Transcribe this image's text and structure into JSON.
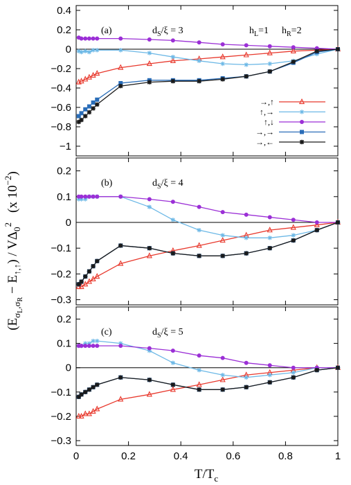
{
  "figure": {
    "ylabel_main": "(E",
    "ylabel_sub1": "σ",
    "ylabel_subsub1": "L",
    "ylabel_comma": ",σ",
    "ylabel_subsub2": "R",
    "ylabel_mid": " − E",
    "ylabel_sub2": "↑,↑",
    "ylabel_tail": ") / VΔ",
    "ylabel_sub0": "0",
    "ylabel_sup": "2",
    "ylabel_scale": "(x 10",
    "ylabel_scale_exp": "−2",
    "ylabel_scale_close": ")",
    "xlabel_main": "T/T",
    "xlabel_sub": "c",
    "x_ticks": [
      "0",
      "0.2",
      "0.4",
      "0.6",
      "0.8",
      "1"
    ]
  },
  "legend": {
    "entries": [
      {
        "label": "→,↑",
        "color": "#e8382c",
        "marker": "triangle"
      },
      {
        "label": "↑,→",
        "color": "#6cb8e6",
        "marker": "star"
      },
      {
        "label": "↑,↓",
        "color": "#9b2fd6",
        "marker": "circle"
      },
      {
        "label": "→,→",
        "color": "#2a6db8",
        "marker": "square"
      },
      {
        "label": "→,←",
        "color": "#1a1a1a",
        "marker": "asterisk"
      }
    ]
  },
  "chart_data": [
    {
      "type": "line",
      "panel_label": "(a)",
      "annotation_main": "d",
      "annotation_sub": "S",
      "annotation_tail": "/ξ = 3",
      "extra_annotations": [
        {
          "main": "h",
          "sub": "L",
          "tail": "=1"
        },
        {
          "main": "h",
          "sub": "R",
          "tail": "=2"
        }
      ],
      "xlim": [
        0,
        1
      ],
      "ylim": [
        -1.1,
        0.45
      ],
      "yticks": [
        0.4,
        0.2,
        0,
        -0.2,
        -0.4,
        -0.6,
        -0.8,
        -1
      ],
      "ytick_labels": [
        "0.4",
        "0.2",
        "0",
        "−0.2",
        "−0.4",
        "−0.6",
        "−0.8",
        "−1"
      ],
      "series": [
        {
          "key": "s1",
          "x": [
            0.01,
            0.02,
            0.035,
            0.05,
            0.065,
            0.08,
            0.17,
            0.28,
            0.37,
            0.47,
            0.56,
            0.65,
            0.74,
            0.83,
            0.92,
            1.0
          ],
          "y": [
            -0.34,
            -0.33,
            -0.31,
            -0.29,
            -0.27,
            -0.25,
            -0.19,
            -0.15,
            -0.12,
            -0.1,
            -0.08,
            -0.06,
            -0.04,
            -0.02,
            -0.01,
            0.0
          ]
        },
        {
          "key": "s2",
          "x": [
            0.01,
            0.02,
            0.035,
            0.05,
            0.065,
            0.08,
            0.17,
            0.28,
            0.37,
            0.47,
            0.56,
            0.65,
            0.74,
            0.83,
            0.92,
            1.0
          ],
          "y": [
            -0.02,
            -0.03,
            -0.02,
            -0.03,
            -0.01,
            -0.01,
            -0.01,
            -0.04,
            -0.08,
            -0.12,
            -0.15,
            -0.16,
            -0.15,
            -0.12,
            -0.05,
            0.0
          ]
        },
        {
          "key": "s3",
          "x": [
            0.01,
            0.02,
            0.035,
            0.05,
            0.065,
            0.08,
            0.17,
            0.28,
            0.37,
            0.47,
            0.56,
            0.65,
            0.74,
            0.83,
            0.92,
            1.0
          ],
          "y": [
            0.12,
            0.11,
            0.11,
            0.11,
            0.11,
            0.11,
            0.11,
            0.1,
            0.09,
            0.07,
            0.05,
            0.04,
            0.03,
            0.02,
            0.01,
            0.0
          ]
        },
        {
          "key": "s4",
          "x": [
            0.01,
            0.02,
            0.035,
            0.05,
            0.065,
            0.08,
            0.17,
            0.28,
            0.37,
            0.47,
            0.56,
            0.65,
            0.74,
            0.83,
            0.92,
            1.0
          ],
          "y": [
            -0.69,
            -0.66,
            -0.62,
            -0.59,
            -0.55,
            -0.52,
            -0.35,
            -0.32,
            -0.32,
            -0.32,
            -0.3,
            -0.28,
            -0.23,
            -0.14,
            -0.03,
            0.0
          ]
        },
        {
          "key": "s5",
          "x": [
            0.01,
            0.02,
            0.035,
            0.05,
            0.065,
            0.08,
            0.17,
            0.28,
            0.37,
            0.47,
            0.56,
            0.65,
            0.74,
            0.83,
            0.92,
            1.0
          ],
          "y": [
            -0.75,
            -0.73,
            -0.69,
            -0.65,
            -0.61,
            -0.57,
            -0.38,
            -0.34,
            -0.33,
            -0.33,
            -0.31,
            -0.28,
            -0.23,
            -0.13,
            -0.02,
            0.0
          ]
        }
      ]
    },
    {
      "type": "line",
      "panel_label": "(b)",
      "annotation_main": "d",
      "annotation_sub": "S",
      "annotation_tail": "/ξ = 4",
      "extra_annotations": [],
      "xlim": [
        0,
        1
      ],
      "ylim": [
        -0.32,
        0.25
      ],
      "yticks": [
        0.2,
        0.1,
        0,
        -0.1,
        -0.2,
        -0.3
      ],
      "ytick_labels": [
        "0.2",
        "0.1",
        "0",
        "−0.1",
        "−0.2",
        "−0.3"
      ],
      "series": [
        {
          "key": "s1",
          "x": [
            0.01,
            0.02,
            0.035,
            0.05,
            0.065,
            0.08,
            0.17,
            0.28,
            0.37,
            0.47,
            0.56,
            0.65,
            0.74,
            0.83,
            0.92,
            1.0
          ],
          "y": [
            -0.25,
            -0.25,
            -0.24,
            -0.23,
            -0.22,
            -0.21,
            -0.16,
            -0.13,
            -0.11,
            -0.09,
            -0.07,
            -0.05,
            -0.03,
            -0.02,
            -0.01,
            0.0
          ]
        },
        {
          "key": "s2",
          "x": [
            0.01,
            0.02,
            0.035,
            0.05,
            0.065,
            0.08,
            0.17,
            0.28,
            0.37,
            0.47,
            0.56,
            0.65,
            0.74,
            0.83,
            0.92,
            1.0
          ],
          "y": [
            0.09,
            0.09,
            0.09,
            0.1,
            0.1,
            0.1,
            0.1,
            0.06,
            0.01,
            -0.03,
            -0.05,
            -0.06,
            -0.06,
            -0.05,
            -0.03,
            0.0
          ]
        },
        {
          "key": "s3",
          "x": [
            0.01,
            0.02,
            0.035,
            0.05,
            0.065,
            0.08,
            0.17,
            0.28,
            0.37,
            0.47,
            0.56,
            0.65,
            0.74,
            0.83,
            0.92,
            1.0
          ],
          "y": [
            0.1,
            0.1,
            0.1,
            0.1,
            0.1,
            0.1,
            0.1,
            0.09,
            0.08,
            0.06,
            0.04,
            0.03,
            0.02,
            0.01,
            0.0,
            0.0
          ]
        },
        {
          "key": "s4",
          "x": [
            0.01,
            0.02,
            0.035,
            0.05,
            0.065,
            0.08,
            0.17,
            0.28,
            0.37,
            0.47,
            0.56,
            0.65,
            0.74,
            0.83,
            0.92,
            1.0
          ],
          "y": [
            -0.24,
            -0.23,
            -0.21,
            -0.19,
            -0.17,
            -0.15,
            -0.09,
            -0.1,
            -0.12,
            -0.13,
            -0.13,
            -0.12,
            -0.1,
            -0.07,
            -0.03,
            0.0
          ]
        },
        {
          "key": "s5",
          "x": [
            0.01,
            0.02,
            0.035,
            0.05,
            0.065,
            0.08,
            0.17,
            0.28,
            0.37,
            0.47,
            0.56,
            0.65,
            0.74,
            0.83,
            0.92,
            1.0
          ],
          "y": [
            -0.24,
            -0.23,
            -0.21,
            -0.19,
            -0.17,
            -0.15,
            -0.09,
            -0.1,
            -0.12,
            -0.13,
            -0.13,
            -0.12,
            -0.1,
            -0.07,
            -0.03,
            0.0
          ]
        }
      ]
    },
    {
      "type": "line",
      "panel_label": "(c)",
      "annotation_main": "d",
      "annotation_sub": "S",
      "annotation_tail": "/ξ = 5",
      "extra_annotations": [],
      "xlim": [
        0,
        1
      ],
      "ylim": [
        -0.32,
        0.25
      ],
      "yticks": [
        0.2,
        0.1,
        0,
        -0.1,
        -0.2,
        -0.3
      ],
      "ytick_labels": [
        "0.2",
        "0.1",
        "0",
        "−0.1",
        "−0.2",
        "−0.3"
      ],
      "series": [
        {
          "key": "s1",
          "x": [
            0.01,
            0.02,
            0.035,
            0.05,
            0.065,
            0.08,
            0.17,
            0.28,
            0.37,
            0.47,
            0.56,
            0.65,
            0.74,
            0.83,
            0.92,
            1.0
          ],
          "y": [
            -0.2,
            -0.2,
            -0.19,
            -0.19,
            -0.18,
            -0.17,
            -0.13,
            -0.11,
            -0.09,
            -0.07,
            -0.05,
            -0.03,
            -0.02,
            -0.01,
            0.0,
            0.0
          ]
        },
        {
          "key": "s2",
          "x": [
            0.01,
            0.02,
            0.035,
            0.05,
            0.065,
            0.08,
            0.17,
            0.28,
            0.37,
            0.47,
            0.56,
            0.65,
            0.74,
            0.83,
            0.92,
            1.0
          ],
          "y": [
            0.09,
            0.09,
            0.1,
            0.1,
            0.11,
            0.11,
            0.1,
            0.07,
            0.02,
            -0.01,
            -0.03,
            -0.04,
            -0.03,
            -0.02,
            0.0,
            0.0
          ]
        },
        {
          "key": "s3",
          "x": [
            0.01,
            0.02,
            0.035,
            0.05,
            0.065,
            0.08,
            0.17,
            0.28,
            0.37,
            0.47,
            0.56,
            0.65,
            0.74,
            0.83,
            0.92,
            1.0
          ],
          "y": [
            0.09,
            0.09,
            0.09,
            0.09,
            0.09,
            0.09,
            0.09,
            0.08,
            0.07,
            0.05,
            0.04,
            0.02,
            0.01,
            0.0,
            0.0,
            0.0
          ]
        },
        {
          "key": "s4",
          "x": [
            0.01,
            0.02,
            0.035,
            0.05,
            0.065,
            0.08,
            0.17,
            0.28,
            0.37,
            0.47,
            0.56,
            0.65,
            0.74,
            0.83,
            0.92,
            1.0
          ],
          "y": [
            -0.12,
            -0.11,
            -0.1,
            -0.09,
            -0.08,
            -0.07,
            -0.04,
            -0.05,
            -0.07,
            -0.09,
            -0.09,
            -0.08,
            -0.06,
            -0.04,
            -0.01,
            0.0
          ]
        },
        {
          "key": "s5",
          "x": [
            0.01,
            0.02,
            0.035,
            0.05,
            0.065,
            0.08,
            0.17,
            0.28,
            0.37,
            0.47,
            0.56,
            0.65,
            0.74,
            0.83,
            0.92,
            1.0
          ],
          "y": [
            -0.12,
            -0.11,
            -0.1,
            -0.09,
            -0.08,
            -0.07,
            -0.04,
            -0.05,
            -0.07,
            -0.09,
            -0.09,
            -0.08,
            -0.06,
            -0.04,
            -0.01,
            0.0
          ]
        }
      ]
    }
  ]
}
